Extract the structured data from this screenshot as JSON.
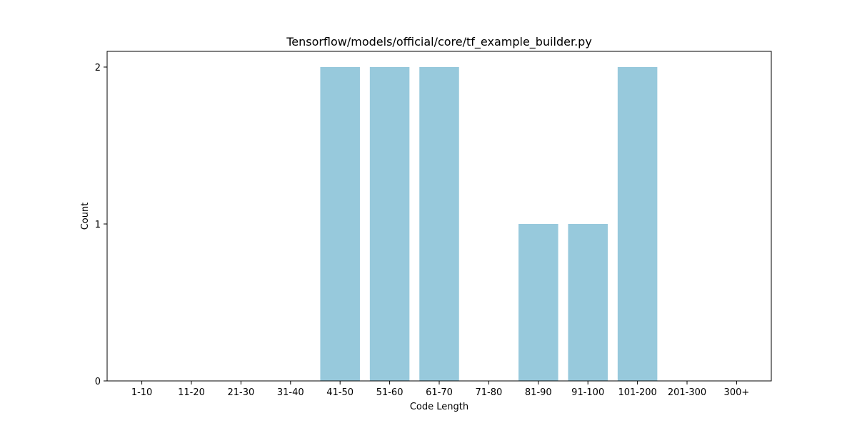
{
  "chart_data": {
    "type": "bar",
    "title": "Tensorflow/models/official/core/tf_example_builder.py",
    "xlabel": "Code Length",
    "ylabel": "Count",
    "categories": [
      "1-10",
      "11-20",
      "21-30",
      "31-40",
      "41-50",
      "51-60",
      "61-70",
      "71-80",
      "81-90",
      "91-100",
      "101-200",
      "201-300",
      "300+"
    ],
    "values": [
      0,
      0,
      0,
      0,
      2,
      2,
      2,
      0,
      1,
      1,
      2,
      0,
      0
    ],
    "ylim": [
      0,
      2.1
    ],
    "yticks": [
      0,
      1,
      2
    ],
    "grid": false,
    "bar_color": "#97c9dc"
  }
}
